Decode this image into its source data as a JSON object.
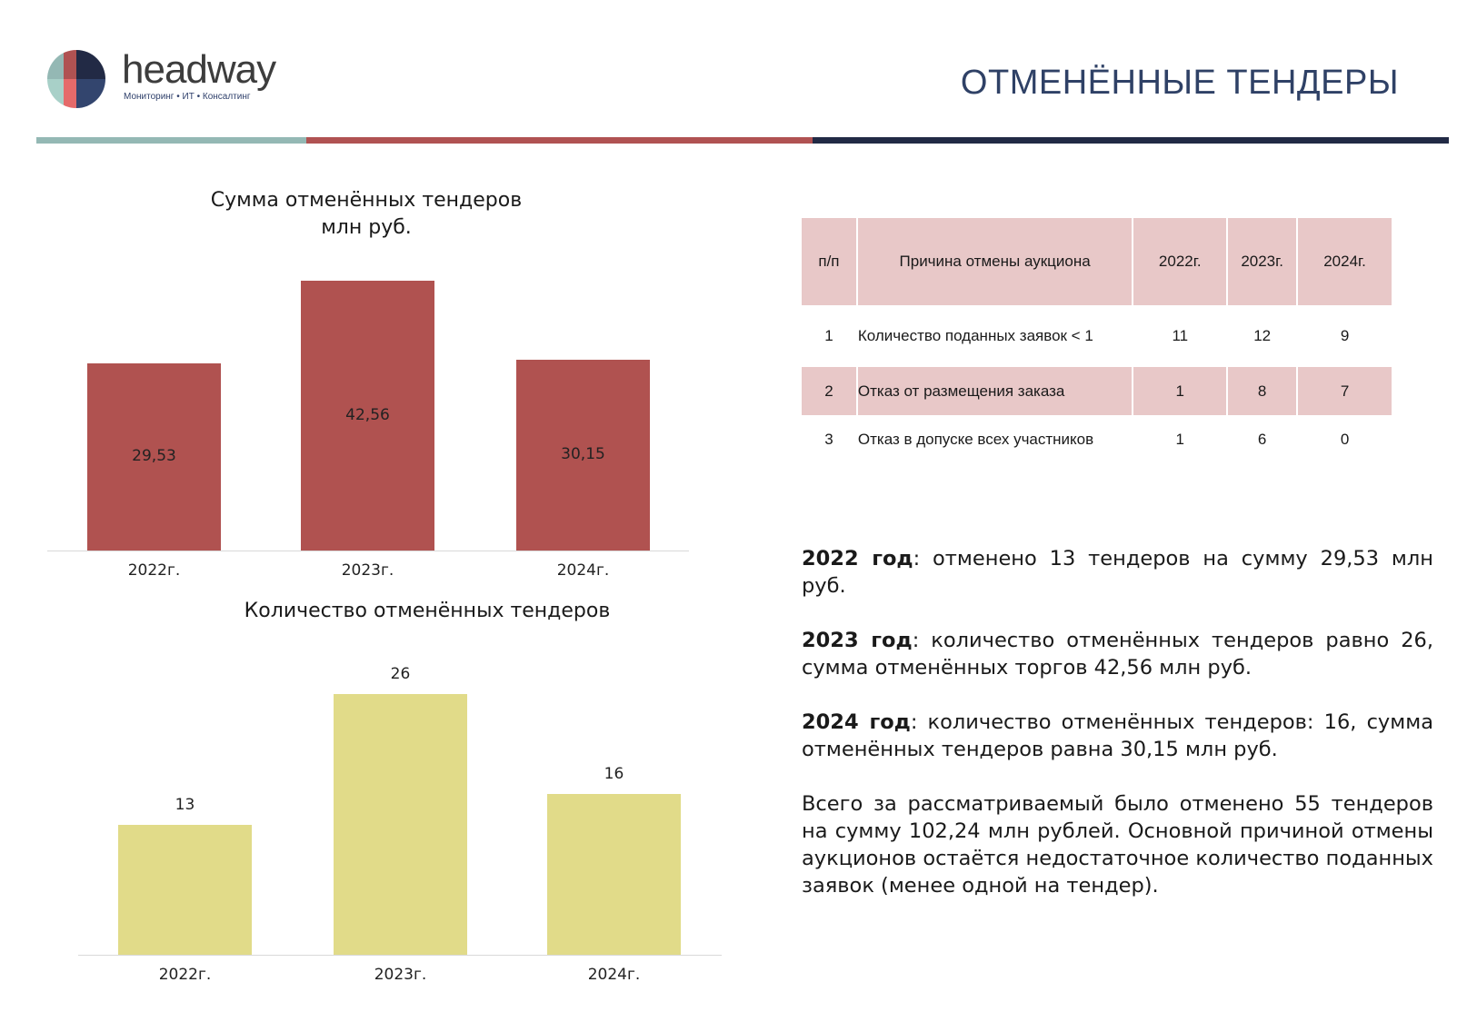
{
  "header": {
    "brand": "headway",
    "tagline": "Мониторинг • ИТ • Консалтинг",
    "title": "ОТМЕНЁННЫЕ ТЕНДЕРЫ",
    "stripe_colors": [
      "#94b8b4",
      "#b05252",
      "#222a45"
    ]
  },
  "chart_data": [
    {
      "type": "bar",
      "title": "Сумма отменённых тендеров",
      "subtitle": "млн руб.",
      "categories": [
        "2022г.",
        "2023г.",
        "2024г."
      ],
      "values": [
        29.53,
        42.56,
        30.15
      ],
      "value_labels": [
        "29,53",
        "42,56",
        "30,15"
      ],
      "label_position": "inside",
      "color": "#b05250",
      "grid": false,
      "ylim": [
        0,
        42.56
      ]
    },
    {
      "type": "bar",
      "title": "Количество отменённых тендеров",
      "categories": [
        "2022г.",
        "2023г.",
        "2024г."
      ],
      "values": [
        13,
        26,
        16
      ],
      "value_labels": [
        "13",
        "26",
        "16"
      ],
      "label_position": "above",
      "color": "#e1db89",
      "grid": false,
      "ylim": [
        0,
        26
      ]
    }
  ],
  "table": {
    "headers": [
      "п/п",
      "Причина отмены аукциона",
      "2022г.",
      "2023г.",
      "2024г."
    ],
    "rows": [
      [
        "1",
        "Количество поданных заявок < 1",
        "11",
        "12",
        "9"
      ],
      [
        "2",
        "Отказ от размещения заказа",
        "1",
        "8",
        "7"
      ],
      [
        "3",
        "Отказ в допуске всех участников",
        "1",
        "6",
        "0"
      ]
    ],
    "header_color": "#e8c8c8"
  },
  "summary": [
    {
      "bold": "2022 год",
      "text": ": отменено 13 тендеров на сумму 29,53 млн руб."
    },
    {
      "bold": "2023 год",
      "text": ": количество отменённых тендеров равно 26, сумма отменённых торгов 42,56 млн руб."
    },
    {
      "bold": "2024 год",
      "text": ": количество отменённых тендеров: 16, сумма отменённых тендеров равна 30,15 млн руб."
    },
    {
      "bold": "",
      "text": "Всего за рассматриваемый было отменено 55 тендеров на сумму 102,24 млн рублей. Основной причиной отмены аукционов остаётся недостаточное количество поданных заявок (менее одной на тендер)."
    }
  ]
}
